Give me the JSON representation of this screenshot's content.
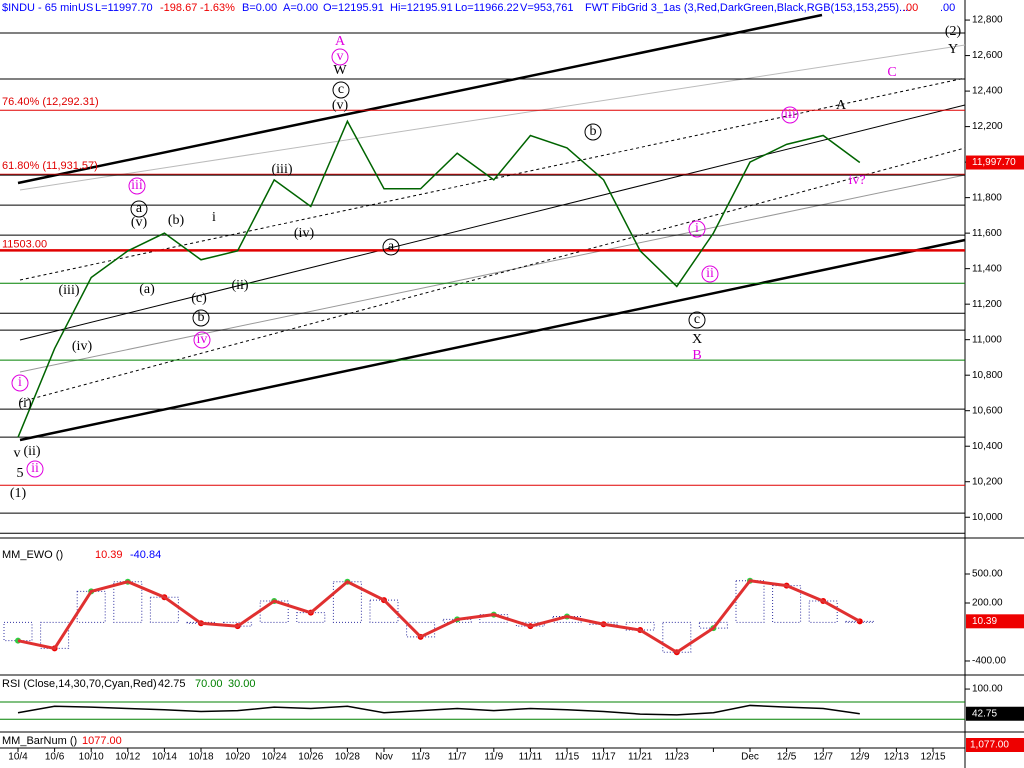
{
  "chart_data": [
    {
      "type": "line",
      "header": [
        "$INDU - 65 min",
        "US",
        "L=11997.70",
        "-198.67",
        "-1.63%",
        "B=0.00",
        "A=0.00",
        "O=12195.91",
        "Hi=12195.91",
        "Lo=11966.22",
        "V=953,761",
        "FWT FibGrid 3_1as (3,Red,DarkGreen,Black,RGB(153,153,255)....",
        ".00",
        ".00"
      ],
      "categories": [
        "10/4",
        "10/6",
        "10/10",
        "10/12",
        "10/14",
        "10/18",
        "10/20",
        "10/24",
        "10/26",
        "10/28",
        "Nov",
        "11/3",
        "11/7",
        "11/9",
        "11/11",
        "11/15",
        "11/17",
        "11/21",
        "11/23",
        null,
        "Dec",
        "12/5",
        "12/7",
        "12/9",
        "12/13",
        "12/15"
      ],
      "values": [
        10450,
        10950,
        11350,
        11500,
        11600,
        11450,
        11500,
        11900,
        11750,
        12230,
        11850,
        11850,
        12050,
        11900,
        12150,
        12080,
        11900,
        11500,
        11300,
        11600,
        12000,
        12100,
        12150,
        11997.7,
        null,
        null
      ],
      "color": "#006400",
      "ylim": [
        9900,
        12913
      ],
      "yticks": [
        {
          "value": 12800,
          "label": "12,800"
        },
        {
          "value": 12600,
          "label": "12,600"
        },
        {
          "value": 12400,
          "label": "12,400"
        },
        {
          "value": 12200,
          "label": "12,200"
        },
        {
          "value": 12000,
          "label": "12,000"
        },
        {
          "value": 11800,
          "label": "11,800"
        },
        {
          "value": 11600,
          "label": "11,600"
        },
        {
          "value": 11400,
          "label": "11,400"
        },
        {
          "value": 11200,
          "label": "11,200"
        },
        {
          "value": 11000,
          "label": "11,000"
        },
        {
          "value": 10800,
          "label": "10,800"
        },
        {
          "value": 10600,
          "label": "10,600"
        },
        {
          "value": 10400,
          "label": "10,400"
        },
        {
          "value": 10200,
          "label": "10,200"
        },
        {
          "value": 10000,
          "label": "10,000"
        }
      ],
      "levels": [
        {
          "value": 12727,
          "color": "#000000"
        },
        {
          "value": 12468,
          "color": "#000000"
        },
        {
          "value": 12292.31,
          "color": "#e00000",
          "label": "76.40% (12,292.31)"
        },
        {
          "value": 11931.57,
          "color": "#e00000",
          "label": "61.80% (11,931.57)"
        },
        {
          "value": 11927,
          "color": "#000000"
        },
        {
          "value": 11758,
          "color": "#000000"
        },
        {
          "value": 11589,
          "color": "#000000"
        },
        {
          "value": 11503,
          "color": "#e00000",
          "label": "11503.00"
        },
        {
          "value": 11318,
          "color": "#008000"
        },
        {
          "value": 11149,
          "color": "#000000"
        },
        {
          "value": 11054,
          "color": "#000000"
        },
        {
          "value": 10885,
          "color": "#008000"
        },
        {
          "value": 10609,
          "color": "#000000"
        },
        {
          "value": 10451,
          "color": "#000000"
        },
        {
          "value": 10180,
          "color": "#e00000"
        },
        {
          "value": 10023,
          "color": "#000000"
        },
        {
          "value": 9910,
          "color": "#000000"
        }
      ],
      "last_value": 11997.7,
      "last_label": "11,997.70",
      "annotations": [
        "A",
        "v",
        "W",
        "c",
        "(v)",
        "(2)",
        "Y",
        "C",
        "A",
        "iii",
        "b",
        "(iii)",
        "iii",
        "a",
        "(v)",
        "(b)",
        "i",
        "(iv)",
        "a",
        "i",
        "ii",
        "(a)",
        "(ii)",
        "(c)",
        "b",
        "iv",
        "(iii)",
        "(iv)",
        "iv?",
        "c",
        "X",
        "B",
        "i",
        "(i)",
        "v",
        "(ii)",
        "ii",
        "5",
        "(1)"
      ]
    },
    {
      "type": "bar",
      "title": "MM_EWO ()",
      "readouts": [
        10.39,
        -40.84
      ],
      "values": [
        -190,
        -270,
        320,
        420,
        260,
        -10,
        -40,
        220,
        100,
        420,
        230,
        -150,
        30,
        80,
        -40,
        60,
        -20,
        -80,
        -310,
        -60,
        430,
        380,
        220,
        10.39,
        null,
        null
      ],
      "ylim": [
        -514,
        800
      ],
      "yticks": [
        {
          "value": 500,
          "label": "500.00"
        },
        {
          "value": 200,
          "label": "200.00"
        },
        {
          "value": -400,
          "label": "-400.00"
        }
      ]
    },
    {
      "type": "line",
      "title": "RSI (Close,14,30,70,Cyan,Red)",
      "readouts": [
        42.75,
        {
          "value": 70,
          "label": "70.00"
        },
        {
          "value": 30,
          "label": "30.00"
        }
      ],
      "values": [
        45,
        60,
        58,
        55,
        52,
        48,
        50,
        58,
        55,
        60,
        45,
        50,
        55,
        50,
        55,
        52,
        48,
        42,
        40,
        45,
        62,
        58,
        55,
        42.75,
        null,
        null
      ],
      "ylim": [
        12,
        121
      ],
      "yticks": [
        {
          "value": 100,
          "label": "100.00"
        }
      ]
    },
    {
      "type": "text",
      "title": "MM_BarNum ()",
      "readout": {
        "value": 1077,
        "label": "1077.00"
      },
      "axis_value": {
        "value": 1077,
        "label": "1,077.00"
      }
    }
  ]
}
